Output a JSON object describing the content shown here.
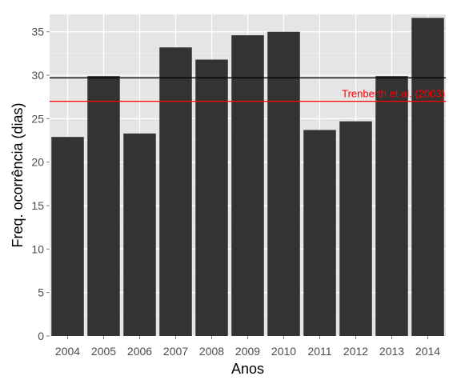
{
  "chart_data": {
    "type": "bar",
    "title": "",
    "xlabel": "Anos",
    "ylabel": "Freq. ocorrência (dias)",
    "categories": [
      "2004",
      "2005",
      "2006",
      "2007",
      "2008",
      "2009",
      "2010",
      "2011",
      "2012",
      "2013",
      "2014"
    ],
    "values": [
      22.9,
      29.9,
      23.3,
      33.2,
      31.8,
      34.6,
      35.0,
      23.7,
      24.7,
      29.9,
      36.6
    ],
    "ylim": [
      0,
      37
    ],
    "yticks": [
      "0",
      "5",
      "10",
      "15",
      "20",
      "25",
      "30",
      "35"
    ],
    "grid": true,
    "bar_color": "#333333",
    "panel_background": "#e5e5e5",
    "reference_lines": [
      {
        "value": 29.7,
        "color": "#000000",
        "label": ""
      },
      {
        "value": 27.0,
        "color": "#ff0000",
        "label": "Trenberth et al. (2003)"
      }
    ]
  }
}
